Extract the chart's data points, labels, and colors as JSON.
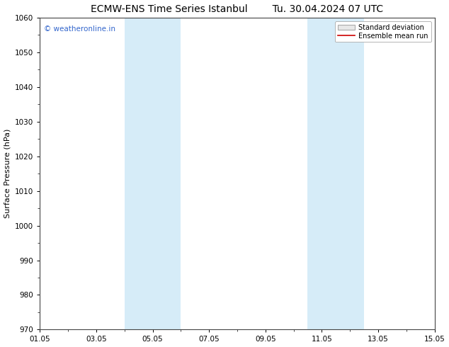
{
  "title": "ECMW-ENS Time Series Istanbul        Tu. 30.04.2024 07 UTC",
  "ylabel": "Surface Pressure (hPa)",
  "ylim": [
    970,
    1060
  ],
  "yticks": [
    970,
    980,
    990,
    1000,
    1010,
    1020,
    1030,
    1040,
    1050,
    1060
  ],
  "xtick_labels": [
    "01.05",
    "03.05",
    "05.05",
    "07.05",
    "09.05",
    "11.05",
    "13.05",
    "15.05"
  ],
  "xtick_positions": [
    0,
    2,
    4,
    6,
    8,
    10,
    12,
    14
  ],
  "shaded_bands": [
    {
      "x_start": 3,
      "x_end": 5
    },
    {
      "x_start": 9.5,
      "x_end": 11.5
    }
  ],
  "shaded_color": "#d6ecf8",
  "watermark_text": "© weatheronline.in",
  "watermark_color": "#3366cc",
  "legend_std_label": "Standard deviation",
  "legend_ens_label": "Ensemble mean run",
  "legend_std_facecolor": "#e8e8e8",
  "legend_std_edgecolor": "#aaaaaa",
  "legend_ens_color": "#cc0000",
  "background_color": "#ffffff",
  "spine_color": "#444444",
  "title_fontsize": 10,
  "label_fontsize": 8,
  "tick_fontsize": 7.5
}
